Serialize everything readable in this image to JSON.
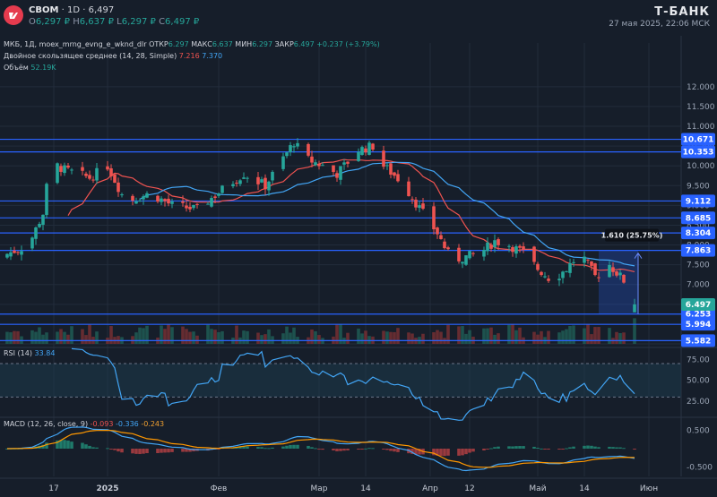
{
  "header": {
    "symbol": "CBOM",
    "timeframe": "1D",
    "last": "6,497",
    "open_label": "O",
    "open": "6,297 ₽",
    "high_label": "H",
    "high": "6,637 ₽",
    "low_label": "L",
    "low": "6,297 ₽",
    "close_label": "C",
    "close": "6,497 ₽",
    "brand": "Т-БАНК",
    "datetime": "27 мая 2025, 22:06 МСК",
    "source_line": "МКБ, 1Д, moex_mrng_evng_e_wknd_dlr",
    "otkr_label": "ОТКР",
    "otkr": "6.297",
    "maks_label": "МАКС",
    "maks": "6.637",
    "min_label": "МИН",
    "min": "6.297",
    "zakr_label": "ЗАКР",
    "zakr": "6.497",
    "change": "+0.237 (+3.79%)",
    "ma_label": "Двойное скользящее среднее (14, 28, Simple)",
    "ma_fast": "7.216",
    "ma_slow": "7.370",
    "volume_label": "Объём",
    "volume_value": "52.19K",
    "rsi_label": "RSI (14)",
    "rsi_value": "33.84",
    "macd_label": "MACD (12, 26, close, 9)",
    "macd_hist": "-0.093",
    "macd_line": "-0.336",
    "macd_signal": "-0.243"
  },
  "colors": {
    "background": "#161e2a",
    "up": "#26a69a",
    "down": "#ef5350",
    "level_line": "#2962ff",
    "ma_fast": "#ef5350",
    "ma_slow": "#42a5f5",
    "rsi": "#42a5f5",
    "macd": "#42a5f5",
    "signal": "#ff9800"
  },
  "chart_data": {
    "type": "candlestick",
    "x_ticks": [
      "17",
      "2025",
      "Фев",
      "Мар",
      "14",
      "Апр",
      "12",
      "Май",
      "14",
      "Июн"
    ],
    "x_tick_days": [
      -15,
      0,
      31,
      59,
      72,
      90,
      101,
      120,
      133,
      151
    ],
    "y_ticks": [
      "12.000",
      "11.500",
      "11.000",
      "10.500",
      "10.000",
      "9.500",
      "9.000",
      "8.500",
      "8.000",
      "7.500",
      "7.000",
      "6.500",
      "6.000",
      "5.500"
    ],
    "ylim": [
      5.5,
      12.2
    ],
    "levels": [
      {
        "label": "10.671",
        "value": 10.671
      },
      {
        "label": "10.353",
        "value": 10.353
      },
      {
        "label": "9.112",
        "value": 9.112
      },
      {
        "label": "8.685",
        "value": 8.685
      },
      {
        "label": "8.304",
        "value": 8.304
      },
      {
        "label": "7.863",
        "value": 7.863
      },
      {
        "label": "6.253",
        "value": 6.253
      },
      {
        "label": "5.994",
        "value": 5.994
      },
      {
        "label": "5.582",
        "value": 5.582
      }
    ],
    "last_price_label": "6.497",
    "last_price": 6.497,
    "measure": {
      "label": "1.610 (25.75%)",
      "from": 6.253,
      "to": 7.863,
      "from_day": 137,
      "to_day": 148
    },
    "close_anchors": [
      {
        "day": -30,
        "close": 7.7
      },
      {
        "day": -22,
        "close": 8.0
      },
      {
        "day": -18,
        "close": 8.8
      },
      {
        "day": -16,
        "close": 10.1
      },
      {
        "day": -12,
        "close": 9.9
      },
      {
        "day": -5,
        "close": 9.7
      },
      {
        "day": 0,
        "close": 10.0
      },
      {
        "day": 5,
        "close": 9.1
      },
      {
        "day": 12,
        "close": 9.3
      },
      {
        "day": 18,
        "close": 9.0
      },
      {
        "day": 25,
        "close": 8.9
      },
      {
        "day": 32,
        "close": 9.4
      },
      {
        "day": 38,
        "close": 9.8
      },
      {
        "day": 44,
        "close": 9.5
      },
      {
        "day": 52,
        "close": 10.6
      },
      {
        "day": 55,
        "close": 10.2
      },
      {
        "day": 60,
        "close": 10.0
      },
      {
        "day": 64,
        "close": 9.8
      },
      {
        "day": 70,
        "close": 10.4
      },
      {
        "day": 74,
        "close": 10.5
      },
      {
        "day": 77,
        "close": 10.0
      },
      {
        "day": 82,
        "close": 9.6
      },
      {
        "day": 88,
        "close": 8.8
      },
      {
        "day": 92,
        "close": 8.3
      },
      {
        "day": 96,
        "close": 7.6
      },
      {
        "day": 100,
        "close": 7.7
      },
      {
        "day": 104,
        "close": 7.8
      },
      {
        "day": 108,
        "close": 8.1
      },
      {
        "day": 112,
        "close": 8.0
      },
      {
        "day": 116,
        "close": 7.8
      },
      {
        "day": 120,
        "close": 7.4
      },
      {
        "day": 124,
        "close": 7.1
      },
      {
        "day": 128,
        "close": 7.4
      },
      {
        "day": 132,
        "close": 7.8
      },
      {
        "day": 136,
        "close": 7.2
      },
      {
        "day": 140,
        "close": 7.5
      },
      {
        "day": 144,
        "close": 7.1
      },
      {
        "day": 146,
        "close": 6.3
      },
      {
        "day": 147,
        "close": 6.5
      }
    ],
    "rsi": {
      "ticks": [
        "75.00",
        "50.00",
        "25.00"
      ],
      "ylim": [
        10,
        85
      ],
      "overbought": 70,
      "oversold": 30,
      "last": 33.84
    },
    "macd": {
      "ticks": [
        "0.500",
        "-0.500"
      ],
      "ylim": [
        -0.75,
        0.75
      ],
      "histogram_last": -0.093,
      "macd_last": -0.336,
      "signal_last": -0.243
    }
  }
}
